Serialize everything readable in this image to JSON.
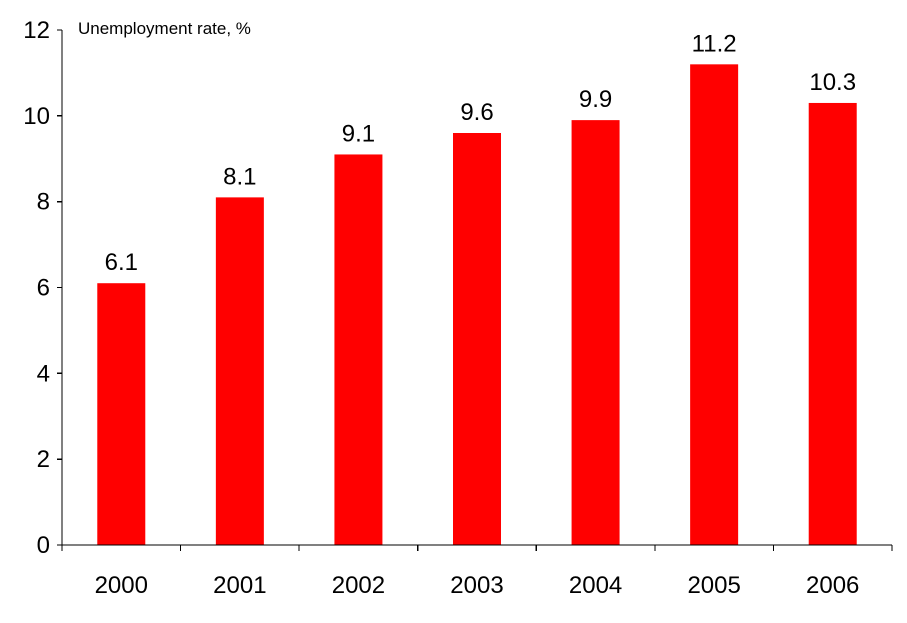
{
  "chart_data": {
    "type": "bar",
    "title": "Unemployment rate, %",
    "xlabel": "",
    "ylabel": "",
    "categories": [
      "2000",
      "2001",
      "2002",
      "2003",
      "2004",
      "2005",
      "2006"
    ],
    "values": [
      6.1,
      8.1,
      9.1,
      9.6,
      9.9,
      11.2,
      10.3
    ],
    "data_labels": [
      "6.1",
      "8.1",
      "9.1",
      "9.6",
      "9.9",
      "11.2",
      "10.3"
    ],
    "ylim": [
      0,
      12
    ],
    "yticks": [
      0,
      2,
      4,
      6,
      8,
      10,
      12
    ],
    "ytick_labels": [
      "0",
      "2",
      "4",
      "6",
      "8",
      "10",
      "12"
    ],
    "grid": false,
    "legend": "none",
    "bar_color": "#ff0000"
  }
}
